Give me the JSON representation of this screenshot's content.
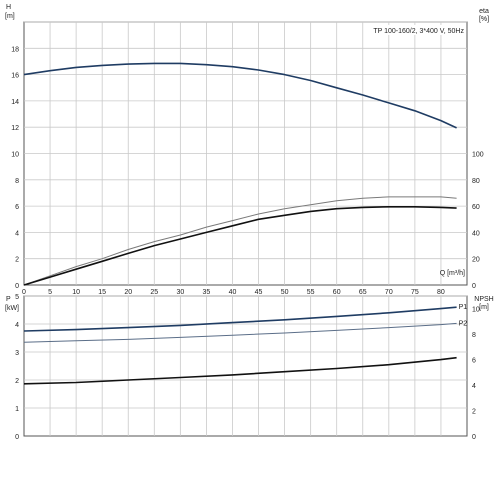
{
  "chart_data": [
    {
      "type": "line",
      "title": "TP 100-160/2, 3*400 V, 50Hz",
      "xlabel": "Q [m³/h]",
      "xlim": [
        0,
        85
      ],
      "x_ticks": [
        "0",
        "5",
        "10",
        "15",
        "20",
        "25",
        "30",
        "35",
        "40",
        "45",
        "50",
        "55",
        "60",
        "65",
        "70",
        "75",
        "80"
      ],
      "grid": true,
      "y_left": {
        "label_top": "H",
        "label_unit": "[m]",
        "ylim": [
          0,
          20
        ],
        "ticks": [
          "0",
          "2",
          "4",
          "6",
          "8",
          "10",
          "12",
          "14",
          "16",
          "18"
        ]
      },
      "y_right": {
        "label_top": "eta",
        "label_unit": "[%]",
        "ylim": [
          0,
          200
        ],
        "ticks": [
          "0",
          "20",
          "40",
          "60",
          "80",
          "100"
        ]
      },
      "series": [
        {
          "axis": "left",
          "color": "#1f3c63",
          "x": [
            0,
            5,
            10,
            15,
            20,
            25,
            30,
            35,
            40,
            45,
            50,
            55,
            60,
            65,
            70,
            75,
            80,
            83
          ],
          "y": [
            16.0,
            16.3,
            16.55,
            16.7,
            16.8,
            16.85,
            16.85,
            16.75,
            16.6,
            16.35,
            16.0,
            15.55,
            15.0,
            14.45,
            13.85,
            13.25,
            12.5,
            11.95
          ]
        },
        {
          "axis": "right",
          "color": "#7a7a7a",
          "x": [
            0,
            5,
            10,
            15,
            20,
            25,
            30,
            35,
            40,
            45,
            50,
            55,
            60,
            65,
            70,
            75,
            80,
            83
          ],
          "y": [
            0,
            7,
            14,
            20,
            27,
            33,
            38,
            44,
            49,
            54,
            58,
            61,
            64,
            66,
            67,
            67,
            67,
            66
          ]
        },
        {
          "axis": "right",
          "color": "#111111",
          "x": [
            0,
            5,
            10,
            15,
            20,
            25,
            30,
            35,
            40,
            45,
            50,
            55,
            60,
            65,
            70,
            75,
            80,
            83
          ],
          "y": [
            0,
            6,
            12,
            18,
            24,
            30,
            35,
            40,
            45,
            50,
            53,
            56,
            58,
            59,
            59.5,
            59.5,
            59,
            58.5
          ]
        }
      ]
    },
    {
      "type": "line",
      "xlim": [
        0,
        85
      ],
      "grid": true,
      "y_left": {
        "label_top": "P",
        "label_unit": "[kW]",
        "ylim": [
          0,
          5
        ],
        "ticks": [
          "0",
          "1",
          "2",
          "3",
          "4",
          "5"
        ]
      },
      "y_right": {
        "label_top": "NPSH",
        "label_unit": "[m]",
        "ylim": [
          0,
          11
        ],
        "ticks": [
          "0",
          "2",
          "4",
          "6",
          "8",
          "10"
        ]
      },
      "series": [
        {
          "name": "P1",
          "axis": "left",
          "color": "#1f3c63",
          "x": [
            0,
            10,
            20,
            30,
            40,
            50,
            60,
            70,
            80,
            83
          ],
          "y": [
            3.75,
            3.8,
            3.87,
            3.95,
            4.05,
            4.15,
            4.27,
            4.4,
            4.55,
            4.6
          ]
        },
        {
          "name": "P2",
          "axis": "left",
          "color": "#5b6e88",
          "x": [
            0,
            10,
            20,
            30,
            40,
            50,
            60,
            70,
            80,
            83
          ],
          "y": [
            3.35,
            3.4,
            3.45,
            3.52,
            3.6,
            3.68,
            3.77,
            3.87,
            3.98,
            4.02
          ]
        },
        {
          "axis": "right",
          "color": "#111111",
          "x": [
            0,
            10,
            20,
            30,
            40,
            50,
            60,
            70,
            80,
            83
          ],
          "y": [
            4.1,
            4.2,
            4.4,
            4.6,
            4.8,
            5.05,
            5.3,
            5.6,
            6.0,
            6.15
          ]
        }
      ]
    }
  ]
}
